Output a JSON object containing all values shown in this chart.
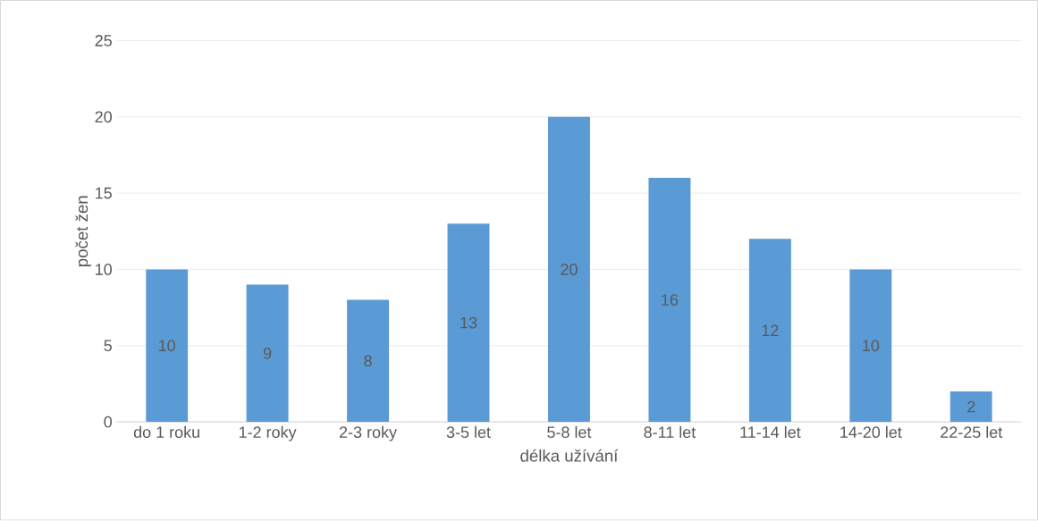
{
  "chart_data": {
    "type": "bar",
    "xlabel": "délka užívání",
    "ylabel": "počet žen",
    "categories": [
      "do 1 roku",
      "1-2 roky",
      "2-3 roky",
      "3-5 let",
      "5-8 let",
      "8-11 let",
      "11-14 let",
      "14-20 let",
      "22-25 let"
    ],
    "values": [
      10,
      9,
      8,
      13,
      20,
      16,
      12,
      10,
      2
    ],
    "color": "#5b9bd5",
    "ylim": [
      0,
      25
    ],
    "yticks": [
      0,
      5,
      10,
      15,
      20,
      25
    ],
    "grid": "y",
    "data_labels": true
  }
}
